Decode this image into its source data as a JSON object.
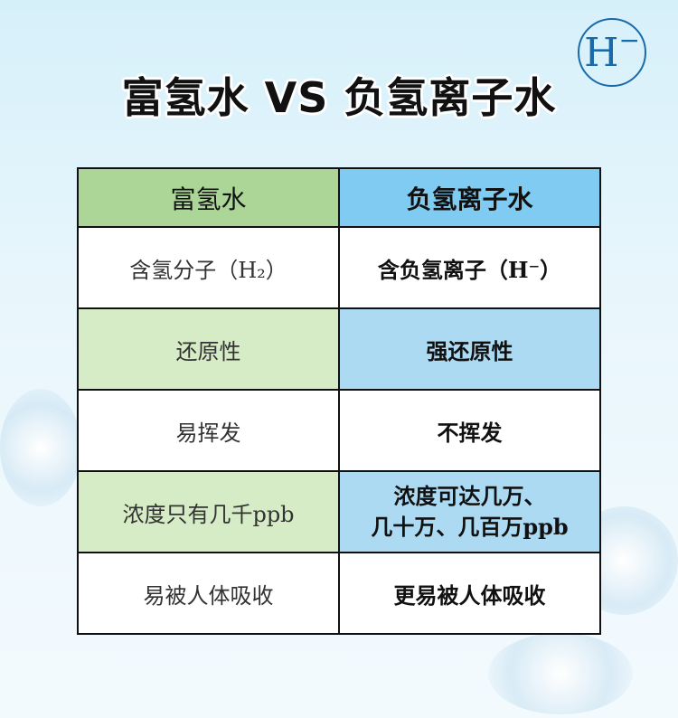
{
  "title": "富氢水 VS 负氢离子水",
  "logo": {
    "text": "H",
    "sup": "−"
  },
  "table": {
    "headers": [
      "富氢水",
      "负氢离子水"
    ],
    "rows": [
      [
        "含氢分子（H₂）",
        "含负氢离子（H⁻）"
      ],
      [
        "还原性",
        "强还原性"
      ],
      [
        "易挥发",
        "不挥发"
      ],
      [
        "浓度只有几千ppb",
        "浓度可达几万、\n几十万、几百万ppb"
      ],
      [
        "易被人体吸收",
        "更易被人体吸收"
      ]
    ]
  },
  "colors": {
    "left_header": "#acd698",
    "right_header": "#7fcbf2",
    "left_shade": "#d5ecc6",
    "right_shade": "#acdaf2",
    "logo": "#1a6aa8"
  }
}
